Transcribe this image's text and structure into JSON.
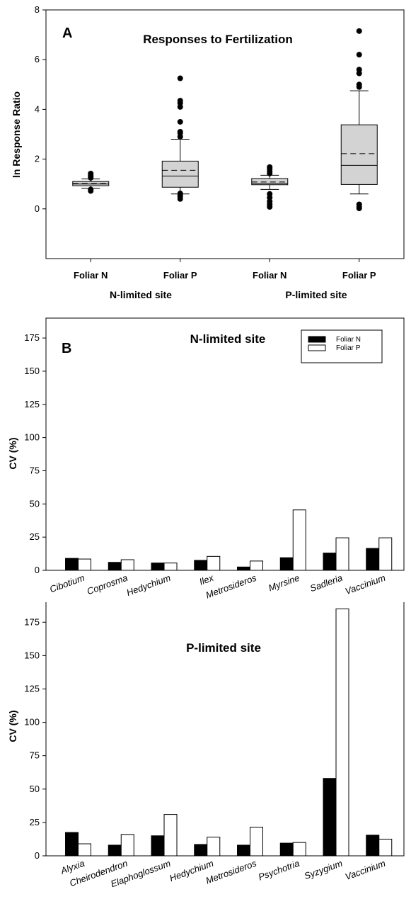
{
  "chart_data": [
    {
      "panel": "A",
      "type": "box",
      "title": "Responses to Fertilization",
      "ylabel": "ln Response Ratio",
      "ylim": [
        -2,
        8
      ],
      "yticks": [
        0,
        2,
        4,
        6,
        8
      ],
      "categories": [
        "Foliar N",
        "Foliar P",
        "Foliar N",
        "Foliar P"
      ],
      "groups": [
        "N-limited site",
        "P-limited site"
      ],
      "boxes": [
        {
          "q1": 0.93,
          "median": 1.0,
          "q3": 1.1,
          "mean": 1.02,
          "whisker_low": 0.82,
          "whisker_high": 1.2,
          "outliers": [
            0.72,
            0.78,
            1.25,
            1.3,
            1.35,
            1.42
          ]
        },
        {
          "q1": 0.87,
          "median": 1.32,
          "q3": 1.92,
          "mean": 1.55,
          "whisker_low": 0.6,
          "whisker_high": 2.8,
          "outliers": [
            0.4,
            0.5,
            0.55,
            0.62,
            2.9,
            3.05,
            3.1,
            3.5,
            4.1,
            4.25,
            4.35,
            5.25
          ]
        },
        {
          "q1": 0.97,
          "median": 1.02,
          "q3": 1.22,
          "mean": 1.08,
          "whisker_low": 0.78,
          "whisker_high": 1.35,
          "outliers": [
            0.08,
            0.18,
            0.3,
            0.45,
            0.6,
            1.42,
            1.5,
            1.6,
            1.68
          ]
        },
        {
          "q1": 0.98,
          "median": 1.75,
          "q3": 3.38,
          "mean": 2.22,
          "whisker_low": 0.6,
          "whisker_high": 4.75,
          "outliers": [
            0.02,
            0.08,
            0.18,
            4.9,
            5.0,
            5.45,
            5.6,
            6.2,
            7.15
          ]
        }
      ]
    },
    {
      "panel": "B",
      "type": "bar",
      "title": "N-limited site",
      "ylabel": "CV (%)",
      "ylim": [
        0,
        190
      ],
      "yticks": [
        0,
        25,
        50,
        75,
        100,
        125,
        150,
        175
      ],
      "categories": [
        "Cibotium",
        "Coprosma",
        "Hedychium",
        "Ilex",
        "Metrosideros",
        "Myrsine",
        "Sadleria",
        "Vaccinium"
      ],
      "series": [
        {
          "name": "Foliar N",
          "color": "#000000",
          "values": [
            9,
            6,
            5.5,
            7.5,
            2.5,
            9.5,
            13,
            16.5
          ]
        },
        {
          "name": "Foliar P",
          "color": "#ffffff",
          "values": [
            8.5,
            8,
            5.5,
            10.5,
            7,
            45.5,
            24.5,
            24.5
          ]
        }
      ]
    },
    {
      "type": "bar",
      "title": "P-limited site",
      "ylabel": "CV (%)",
      "ylim": [
        0,
        190
      ],
      "yticks": [
        0,
        25,
        50,
        75,
        100,
        125,
        150,
        175
      ],
      "categories": [
        "Alyxia",
        "Cheirodendron",
        "Elaphoglossum",
        "Hedychium",
        "Metrosideros",
        "Psychotria",
        "Syzygium",
        "Vaccinium"
      ],
      "series": [
        {
          "name": "Foliar N",
          "color": "#000000",
          "values": [
            17.5,
            8,
            15,
            8.5,
            8,
            9.5,
            58,
            15.5
          ]
        },
        {
          "name": "Foliar P",
          "color": "#ffffff",
          "values": [
            9,
            16,
            31,
            14,
            21.5,
            10,
            185,
            12.5
          ]
        }
      ]
    }
  ]
}
